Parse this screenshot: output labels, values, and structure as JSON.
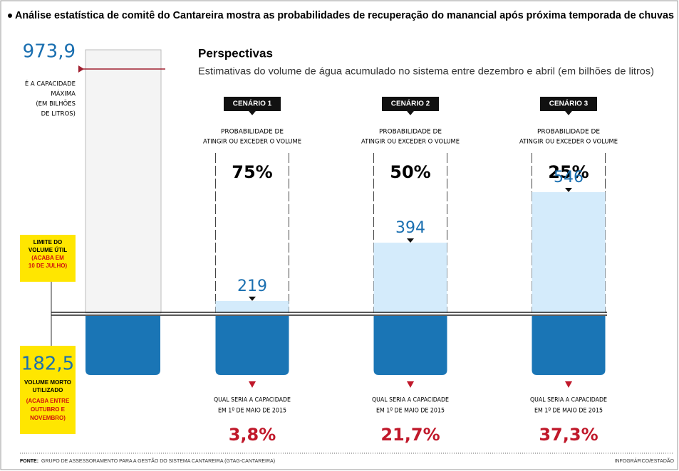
{
  "headline": "Análise estatística de comitê do Cantareira mostra as probabilidades de recuperação do manancial após próxima temporada de chuvas",
  "title": "Perspectivas",
  "subtitle": "Estimativas do volume de água acumulado no sistema entre dezembro e abril (em bilhões de litros)",
  "capacity": {
    "value": 973.9,
    "label": "973,9",
    "text": [
      "É A CAPACIDADE",
      "MÁXIMA",
      "(EM BILHÕES",
      "DE LITROS)"
    ]
  },
  "useful_limit": {
    "text": [
      "LIMITE DO",
      "VOLUME ÚTIL"
    ],
    "note": [
      "(ACABA EM",
      "10 DE JULHO)"
    ]
  },
  "dead_volume": {
    "value": 182.5,
    "label": "182,5",
    "text": [
      "VOLUME MORTO",
      "UTILIZADO"
    ],
    "note": [
      "(ACABA ENTRE",
      "OUTUBRO E",
      "NOVEMBRO)"
    ]
  },
  "scenarios": [
    {
      "name": "CENÁRIO 1",
      "prob_text": [
        "PROBABILIDADE DE",
        "ATINGIR OU EXCEDER O VOLUME"
      ],
      "probability": "75%",
      "volume": 219,
      "capacity_text": [
        "QUAL SERIA A CAPACIDADE",
        "EM 1º DE MAIO DE 2015"
      ],
      "capacity": "3,8%"
    },
    {
      "name": "CENÁRIO 2",
      "prob_text": [
        "PROBABILIDADE DE",
        "ATINGIR OU EXCEDER O VOLUME"
      ],
      "probability": "50%",
      "volume": 394,
      "capacity_text": [
        "QUAL SERIA A CAPACIDADE",
        "EM 1º DE MAIO DE 2015"
      ],
      "capacity": "21,7%"
    },
    {
      "name": "CENÁRIO 3",
      "prob_text": [
        "PROBABILIDADE DE",
        "ATINGIR OU EXCEDER O VOLUME"
      ],
      "probability": "25%",
      "volume": 546,
      "capacity_text": [
        "QUAL SERIA A CAPACIDADE",
        "EM 1º DE MAIO DE 2015"
      ],
      "capacity": "37,3%"
    }
  ],
  "source_label": "FONTE:",
  "source": "GRUPO DE ASSESSORAMENTO PARA A GESTÃO DO SISTEMA CANTAREIRA (GTAG-CANTAREIRA)",
  "credit": "INFOGRÁFICO/ESTADÃO"
}
